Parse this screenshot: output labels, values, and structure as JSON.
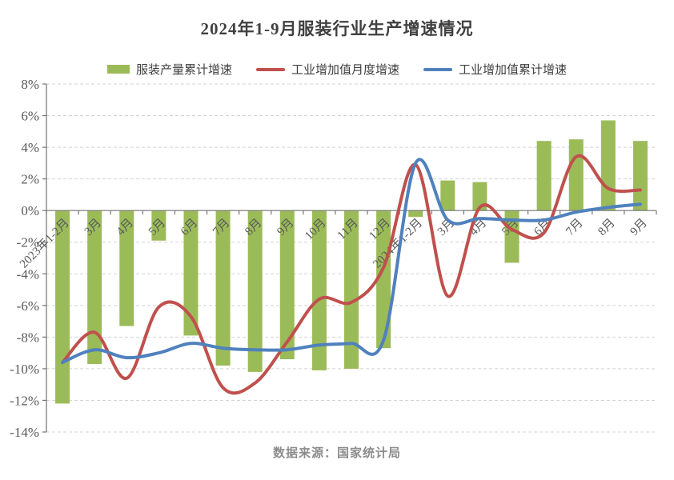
{
  "title": "2024年1-9月服装行业生产增速情况",
  "footer": "数据来源：国家统计局",
  "chart_data": {
    "type": "bar+line combo",
    "title": "2024年1-9月服装行业生产增速情况",
    "source_note": "数据来源：国家统计局",
    "categories": [
      "2023年1-2月",
      "3月",
      "4月",
      "5月",
      "6月",
      "7月",
      "8月",
      "9月",
      "10月",
      "11月",
      "12月",
      "2024年1-2月",
      "3月",
      "4月",
      "5月",
      "6月",
      "7月",
      "8月",
      "9月"
    ],
    "series": [
      {
        "name": "服装产量累计增速",
        "type": "bar",
        "color": "#9BBB59",
        "values": [
          -12.2,
          -9.7,
          -7.3,
          -1.9,
          -7.9,
          -9.8,
          -10.2,
          -9.4,
          -10.1,
          -10.0,
          -8.7,
          -0.4,
          1.9,
          1.8,
          -3.3,
          4.4,
          4.5,
          5.7,
          4.4
        ]
      },
      {
        "name": "工业增加值月度增速",
        "type": "line",
        "color": "#C0504D",
        "values": [
          -9.6,
          -7.7,
          -10.6,
          -6.1,
          -6.7,
          -11.2,
          -10.9,
          -8.3,
          -5.6,
          -5.8,
          -3.6,
          2.9,
          -5.4,
          0.2,
          -1.2,
          -1.4,
          3.4,
          1.4,
          1.3
        ]
      },
      {
        "name": "工业增加值累计增速",
        "type": "line",
        "color": "#4F81BD",
        "values": [
          -9.6,
          -8.8,
          -9.3,
          -9.0,
          -8.4,
          -8.7,
          -8.8,
          -8.8,
          -8.5,
          -8.4,
          -8.2,
          3.0,
          -0.6,
          -0.5,
          -0.6,
          -0.6,
          -0.1,
          0.2,
          0.4
        ]
      }
    ],
    "ylim": [
      -14,
      8
    ],
    "yticks": [
      8,
      6,
      4,
      2,
      0,
      -2,
      -4,
      -6,
      -8,
      -10,
      -12,
      -14
    ],
    "ytick_labels": [
      "8%",
      "6%",
      "4%",
      "2%",
      "0%",
      "-2%",
      "-4%",
      "-6%",
      "-8%",
      "-10%",
      "-12%",
      "-14%"
    ],
    "grid": "horizontal dashed",
    "legend_position": "top center",
    "x_label_rotation_deg": -45
  },
  "colors": {
    "bar_green": "#9BBB59",
    "line_red": "#C0504D",
    "line_blue": "#4F81BD",
    "gridline": "#d3d3d3",
    "axis": "#737373",
    "text": "#404040",
    "axis_text": "#595959",
    "footer_text": "#8c8c8c",
    "background": "#ffffff"
  }
}
